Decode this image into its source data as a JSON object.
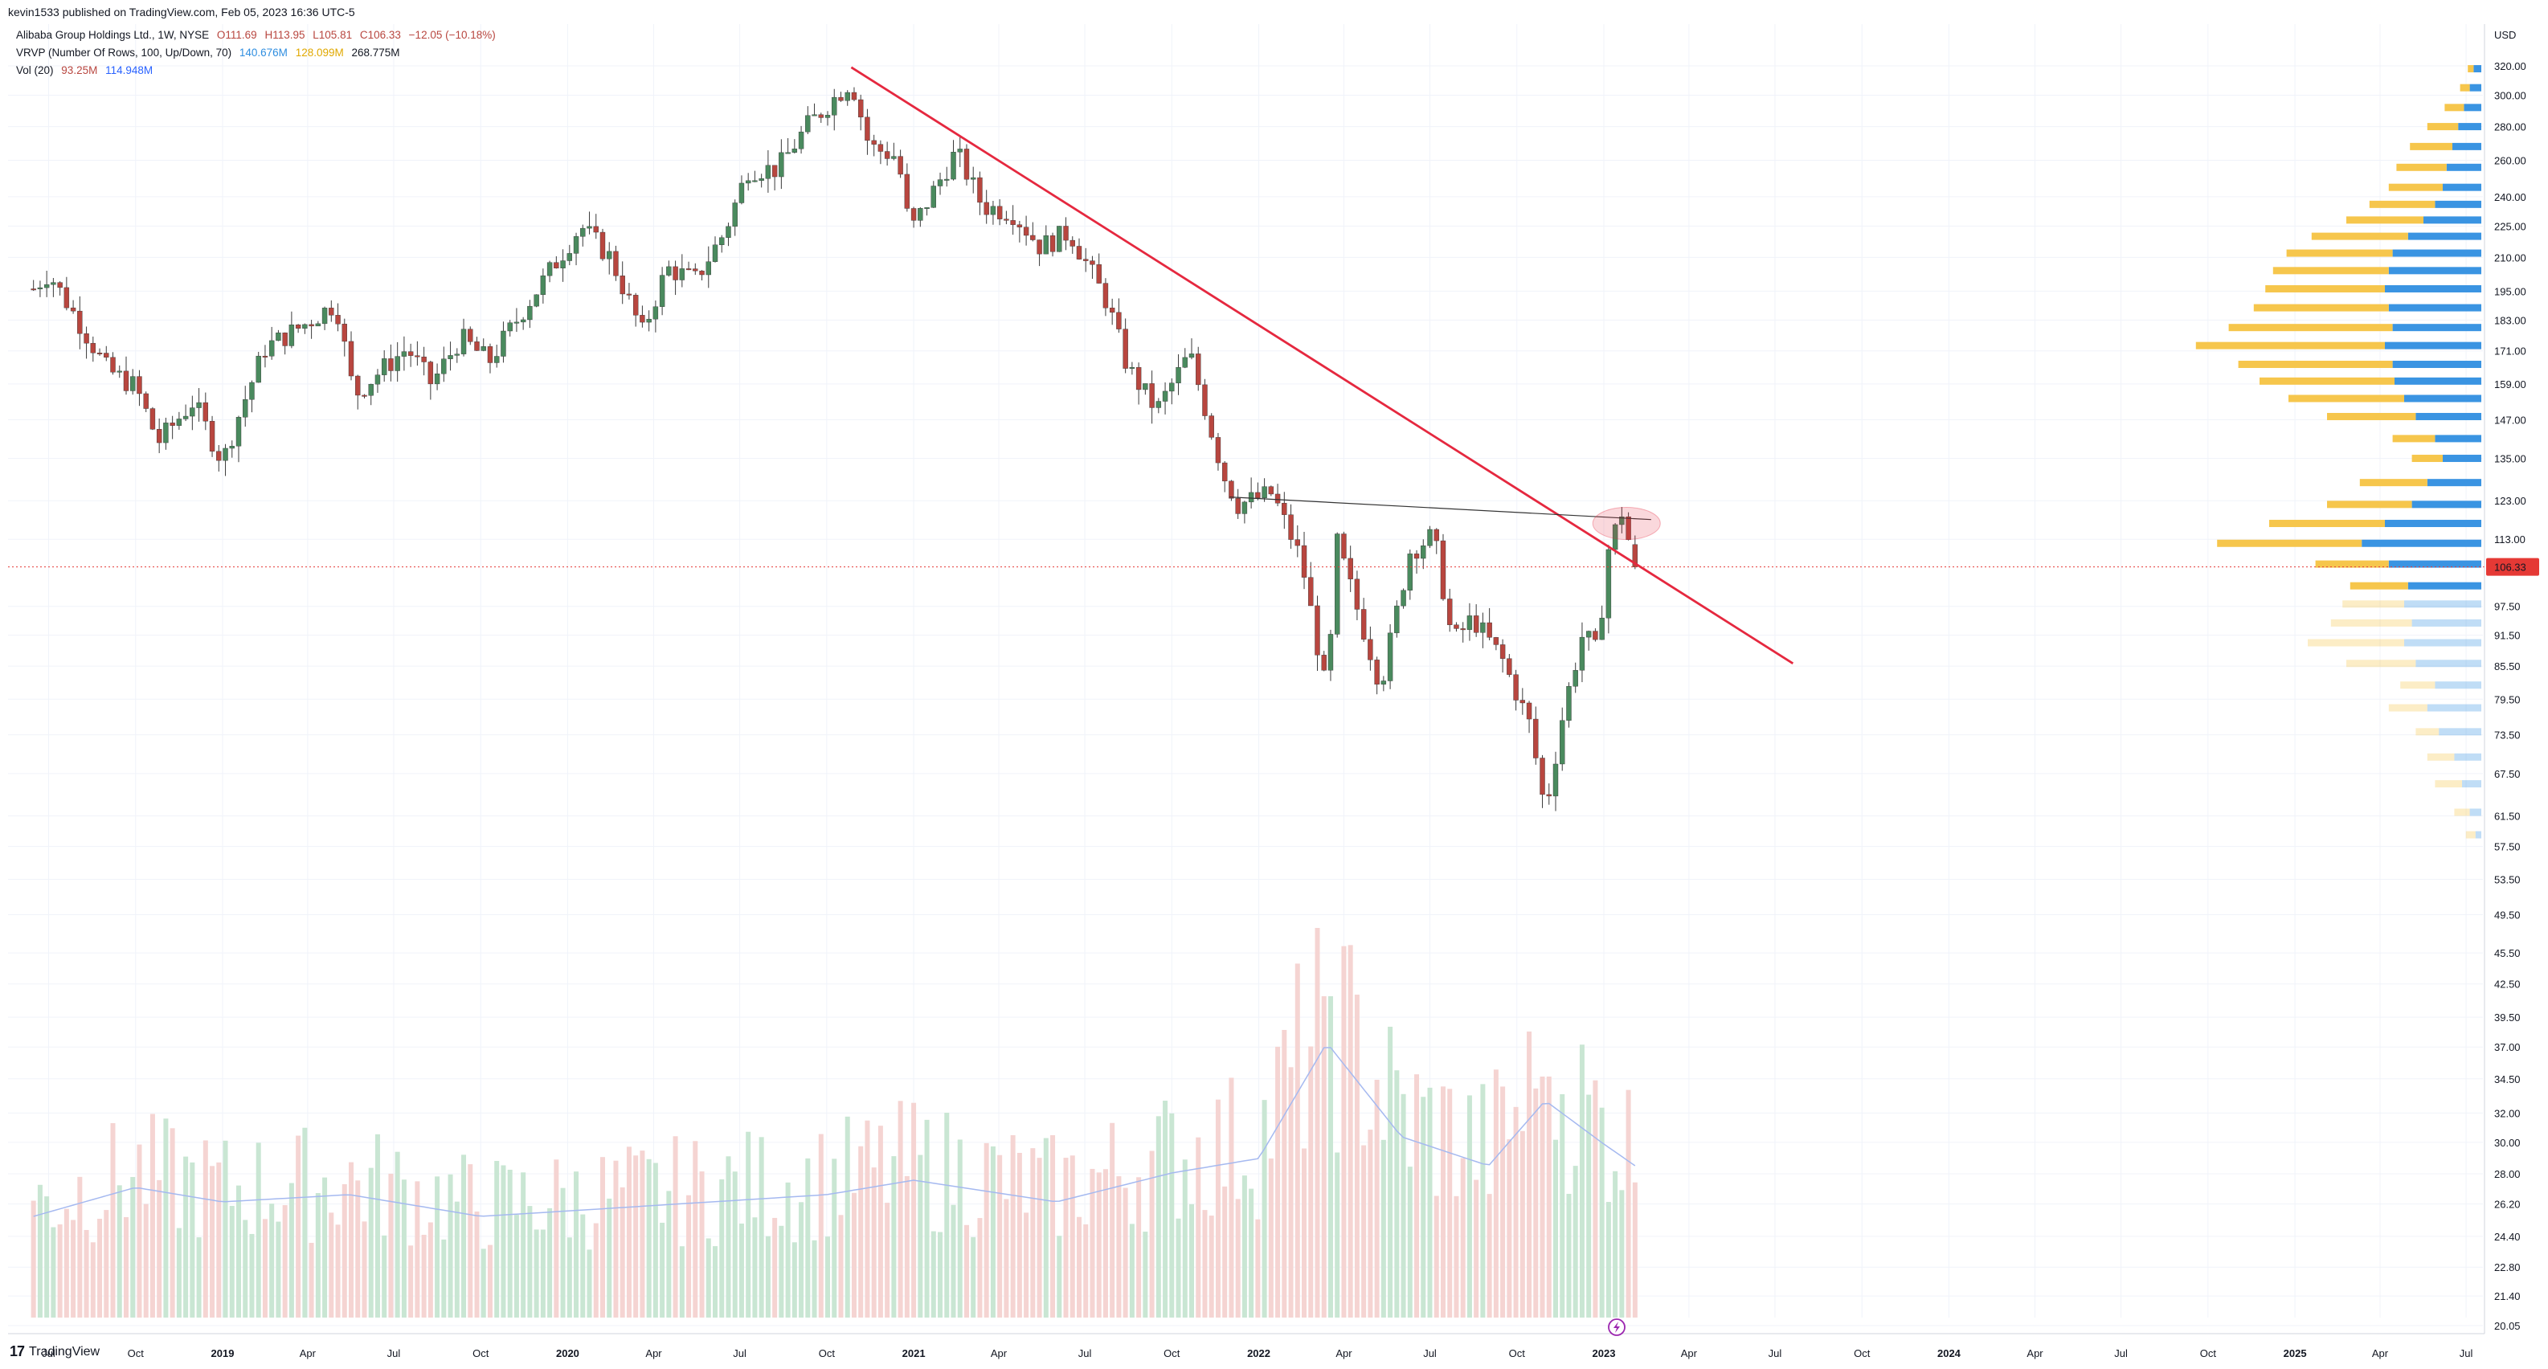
{
  "header": {
    "published": "kevin1533 published on TradingView.com, Feb 05, 2023 16:36 UTC-5"
  },
  "legend": {
    "symbol": {
      "name": "Alibaba Group Holdings Ltd., 1W, NYSE",
      "open": "O111.69",
      "high": "H113.95",
      "low": "L105.81",
      "close": "C106.33",
      "change": "−12.05 (−10.18%)"
    },
    "vrvp": {
      "name": "VRVP (Number Of Rows, 100, Up/Down, 70)",
      "up": "140.676M",
      "down": "128.099M",
      "total": "268.775M"
    },
    "vol": {
      "name": "Vol (20)",
      "vol": "93.25M",
      "ma": "114.948M"
    }
  },
  "colors": {
    "up": "#26a69a",
    "up_candle": "#4a8a5e",
    "down": "#b8463f",
    "trendline": "#e5283f",
    "vrvp_up": "#2f8ee0",
    "vrvp_down": "#f5c342",
    "vol_up": "#c9e6d3",
    "vol_down": "#f5d4d2",
    "vol_ma": "#a5b9f0",
    "price_tag": "#e53935"
  },
  "chart_data": {
    "type": "candlestick",
    "title": "Alibaba Group Holdings Ltd., 1W, NYSE",
    "currency": "USD",
    "last_price": "106.33",
    "ylim": [
      20.05,
      320
    ],
    "price_scale": "log",
    "y_ticks": [
      "320.00",
      "300.00",
      "280.00",
      "260.00",
      "240.00",
      "225.00",
      "210.00",
      "195.00",
      "183.00",
      "171.00",
      "159.00",
      "147.00",
      "135.00",
      "123.00",
      "113.00",
      "97.50",
      "91.50",
      "85.50",
      "79.50",
      "73.50",
      "67.50",
      "61.50",
      "57.50",
      "53.50",
      "49.50",
      "45.50",
      "42.50",
      "39.50",
      "37.00",
      "34.50",
      "32.00",
      "30.00",
      "28.00",
      "26.20",
      "24.40",
      "22.80",
      "21.40",
      "20.05"
    ],
    "x_ticks": [
      {
        "label": "Jul",
        "date": "2018-07-01",
        "year": false
      },
      {
        "label": "Oct",
        "date": "2018-10-01",
        "year": false
      },
      {
        "label": "2019",
        "date": "2019-01-01",
        "year": true
      },
      {
        "label": "Apr",
        "date": "2019-04-01",
        "year": false
      },
      {
        "label": "Jul",
        "date": "2019-07-01",
        "year": false
      },
      {
        "label": "Oct",
        "date": "2019-10-01",
        "year": false
      },
      {
        "label": "2020",
        "date": "2020-01-01",
        "year": true
      },
      {
        "label": "Apr",
        "date": "2020-04-01",
        "year": false
      },
      {
        "label": "Jul",
        "date": "2020-07-01",
        "year": false
      },
      {
        "label": "Oct",
        "date": "2020-10-01",
        "year": false
      },
      {
        "label": "2021",
        "date": "2021-01-01",
        "year": true
      },
      {
        "label": "Apr",
        "date": "2021-04-01",
        "year": false
      },
      {
        "label": "Jul",
        "date": "2021-07-01",
        "year": false
      },
      {
        "label": "Oct",
        "date": "2021-10-01",
        "year": false
      },
      {
        "label": "2022",
        "date": "2022-01-01",
        "year": true
      },
      {
        "label": "Apr",
        "date": "2022-04-01",
        "year": false
      },
      {
        "label": "Jul",
        "date": "2022-07-01",
        "year": false
      },
      {
        "label": "Oct",
        "date": "2022-10-01",
        "year": false
      },
      {
        "label": "2023",
        "date": "2023-01-01",
        "year": true
      },
      {
        "label": "Apr",
        "date": "2023-04-01",
        "year": false
      },
      {
        "label": "Jul",
        "date": "2023-07-01",
        "year": false
      },
      {
        "label": "Oct",
        "date": "2023-10-01",
        "year": false
      },
      {
        "label": "2024",
        "date": "2024-01-01",
        "year": true
      },
      {
        "label": "Apr",
        "date": "2024-04-01",
        "year": false
      },
      {
        "label": "Jul",
        "date": "2024-07-01",
        "year": false
      },
      {
        "label": "Oct",
        "date": "2024-10-01",
        "year": false
      },
      {
        "label": "2025",
        "date": "2025-01-01",
        "year": true
      },
      {
        "label": "Apr",
        "date": "2025-04-01",
        "year": false
      },
      {
        "label": "Jul",
        "date": "2025-07-01",
        "year": false
      }
    ],
    "price_path": [
      {
        "date": "2018-06-15",
        "close": 196
      },
      {
        "date": "2018-07-01",
        "close": 203
      },
      {
        "date": "2018-08-01",
        "close": 183
      },
      {
        "date": "2018-09-01",
        "close": 164
      },
      {
        "date": "2018-10-01",
        "close": 158
      },
      {
        "date": "2018-10-25",
        "close": 140
      },
      {
        "date": "2018-12-01",
        "close": 153
      },
      {
        "date": "2019-01-01",
        "close": 134
      },
      {
        "date": "2019-01-20",
        "close": 150
      },
      {
        "date": "2019-02-15",
        "close": 172
      },
      {
        "date": "2019-04-01",
        "close": 182
      },
      {
        "date": "2019-05-01",
        "close": 190
      },
      {
        "date": "2019-05-20",
        "close": 155
      },
      {
        "date": "2019-06-15",
        "close": 163
      },
      {
        "date": "2019-07-15",
        "close": 172
      },
      {
        "date": "2019-08-10",
        "close": 159
      },
      {
        "date": "2019-09-10",
        "close": 176
      },
      {
        "date": "2019-10-10",
        "close": 167
      },
      {
        "date": "2019-11-15",
        "close": 187
      },
      {
        "date": "2019-12-20",
        "close": 208
      },
      {
        "date": "2020-01-15",
        "close": 225
      },
      {
        "date": "2020-02-15",
        "close": 210
      },
      {
        "date": "2020-03-20",
        "close": 178
      },
      {
        "date": "2020-04-15",
        "close": 205
      },
      {
        "date": "2020-05-15",
        "close": 200
      },
      {
        "date": "2020-06-15",
        "close": 222
      },
      {
        "date": "2020-07-10",
        "close": 255
      },
      {
        "date": "2020-08-10",
        "close": 255
      },
      {
        "date": "2020-09-10",
        "close": 280
      },
      {
        "date": "2020-10-27",
        "close": 310
      },
      {
        "date": "2020-11-15",
        "close": 268
      },
      {
        "date": "2020-12-15",
        "close": 262
      },
      {
        "date": "2020-12-28",
        "close": 222
      },
      {
        "date": "2021-02-15",
        "close": 265
      },
      {
        "date": "2021-03-15",
        "close": 235
      },
      {
        "date": "2021-04-15",
        "close": 232
      },
      {
        "date": "2021-05-15",
        "close": 215
      },
      {
        "date": "2021-06-15",
        "close": 222
      },
      {
        "date": "2021-07-25",
        "close": 190
      },
      {
        "date": "2021-08-15",
        "close": 165
      },
      {
        "date": "2021-09-15",
        "close": 150
      },
      {
        "date": "2021-10-20",
        "close": 170
      },
      {
        "date": "2021-11-25",
        "close": 130
      },
      {
        "date": "2021-12-10",
        "close": 122
      },
      {
        "date": "2022-01-15",
        "close": 125
      },
      {
        "date": "2022-02-15",
        "close": 108
      },
      {
        "date": "2022-03-14",
        "close": 80
      },
      {
        "date": "2022-03-25",
        "close": 112
      },
      {
        "date": "2022-04-15",
        "close": 97
      },
      {
        "date": "2022-05-10",
        "close": 82
      },
      {
        "date": "2022-06-10",
        "close": 110
      },
      {
        "date": "2022-07-05",
        "close": 114
      },
      {
        "date": "2022-07-25",
        "close": 90
      },
      {
        "date": "2022-08-15",
        "close": 95
      },
      {
        "date": "2022-09-15",
        "close": 87
      },
      {
        "date": "2022-10-15",
        "close": 75
      },
      {
        "date": "2022-10-31",
        "close": 62
      },
      {
        "date": "2022-11-20",
        "close": 78
      },
      {
        "date": "2022-12-10",
        "close": 92
      },
      {
        "date": "2022-12-25",
        "close": 88
      },
      {
        "date": "2023-01-05",
        "close": 110
      },
      {
        "date": "2023-01-20",
        "close": 120
      },
      {
        "date": "2023-02-03",
        "close": 106.33
      }
    ],
    "trendlines": [
      {
        "kind": "descending",
        "from": {
          "date": "2020-10-27",
          "price": 319
        },
        "to": {
          "date": "2023-07-20",
          "price": 86
        }
      },
      {
        "kind": "horizontal",
        "from": {
          "date": "2021-12-01",
          "price": 124
        },
        "to": {
          "date": "2023-02-20",
          "price": 118
        }
      }
    ],
    "volume_path": [
      {
        "date": "2018-06-15",
        "volume": 14
      },
      {
        "date": "2018-10-01",
        "volume": 18
      },
      {
        "date": "2019-01-01",
        "volume": 16
      },
      {
        "date": "2019-05-15",
        "volume": 17
      },
      {
        "date": "2019-10-01",
        "volume": 14
      },
      {
        "date": "2020-02-01",
        "volume": 15
      },
      {
        "date": "2020-06-01",
        "volume": 16
      },
      {
        "date": "2020-10-01",
        "volume": 17
      },
      {
        "date": "2021-01-01",
        "volume": 19
      },
      {
        "date": "2021-06-01",
        "volume": 16
      },
      {
        "date": "2021-10-01",
        "volume": 20
      },
      {
        "date": "2022-01-01",
        "volume": 22
      },
      {
        "date": "2022-03-14",
        "volume": 38
      },
      {
        "date": "2022-06-01",
        "volume": 25
      },
      {
        "date": "2022-09-01",
        "volume": 21
      },
      {
        "date": "2022-10-31",
        "volume": 30
      },
      {
        "date": "2023-01-01",
        "volume": 24
      },
      {
        "date": "2023-02-03",
        "volume": 21
      }
    ],
    "vrvp_profile": [
      {
        "price": 318,
        "up": 4,
        "down": 3
      },
      {
        "price": 305,
        "up": 6,
        "down": 5
      },
      {
        "price": 292,
        "up": 9,
        "down": 10
      },
      {
        "price": 280,
        "up": 12,
        "down": 16
      },
      {
        "price": 268,
        "up": 15,
        "down": 22
      },
      {
        "price": 256,
        "up": 18,
        "down": 26
      },
      {
        "price": 245,
        "up": 20,
        "down": 28
      },
      {
        "price": 236,
        "up": 24,
        "down": 34
      },
      {
        "price": 228,
        "up": 30,
        "down": 40
      },
      {
        "price": 220,
        "up": 38,
        "down": 50
      },
      {
        "price": 212,
        "up": 46,
        "down": 55
      },
      {
        "price": 204,
        "up": 48,
        "down": 60
      },
      {
        "price": 196,
        "up": 50,
        "down": 62
      },
      {
        "price": 188,
        "up": 48,
        "down": 70
      },
      {
        "price": 180,
        "up": 46,
        "down": 85
      },
      {
        "price": 173,
        "up": 50,
        "down": 98
      },
      {
        "price": 166,
        "up": 46,
        "down": 80
      },
      {
        "price": 160,
        "up": 45,
        "down": 70
      },
      {
        "price": 154,
        "up": 40,
        "down": 60
      },
      {
        "price": 148,
        "up": 34,
        "down": 46
      },
      {
        "price": 141,
        "up": 24,
        "down": 22
      },
      {
        "price": 135,
        "up": 20,
        "down": 16
      },
      {
        "price": 128,
        "up": 28,
        "down": 35
      },
      {
        "price": 122,
        "up": 36,
        "down": 44
      },
      {
        "price": 117,
        "up": 50,
        "down": 60
      },
      {
        "price": 112,
        "up": 62,
        "down": 75
      },
      {
        "price": 107,
        "up": 48,
        "down": 38
      },
      {
        "price": 102,
        "up": 38,
        "down": 30
      },
      {
        "price": 98,
        "up": 40,
        "down": 32
      },
      {
        "price": 94,
        "up": 36,
        "down": 42
      },
      {
        "price": 90,
        "up": 40,
        "down": 50
      },
      {
        "price": 86,
        "up": 34,
        "down": 36
      },
      {
        "price": 82,
        "up": 24,
        "down": 18
      },
      {
        "price": 78,
        "up": 28,
        "down": 20
      },
      {
        "price": 74,
        "up": 22,
        "down": 12
      },
      {
        "price": 70,
        "up": 14,
        "down": 14
      },
      {
        "price": 66,
        "up": 10,
        "down": 14
      },
      {
        "price": 62,
        "up": 6,
        "down": 8
      },
      {
        "price": 59,
        "up": 3,
        "down": 5
      }
    ]
  },
  "volume_axis": {
    "labels": []
  },
  "footer": {
    "brand": "TradingView"
  }
}
